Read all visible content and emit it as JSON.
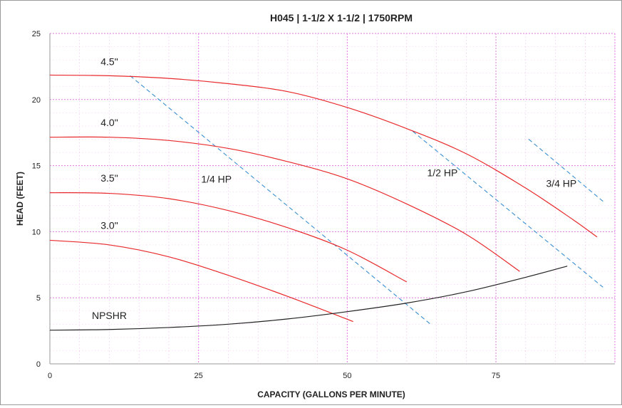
{
  "chart_data": {
    "type": "line",
    "title": "H045 | 1-1/2 X 1-1/2 | 1750RPM",
    "xlabel": "CAPACITY (GALLONS PER MINUTE)",
    "ylabel": "HEAD (FEET)",
    "xlim": [
      0,
      95
    ],
    "ylim": [
      0,
      25
    ],
    "xticks": [
      0,
      25,
      50,
      75
    ],
    "yticks": [
      0,
      5,
      10,
      15,
      20,
      25
    ],
    "grid": true,
    "colors": {
      "impeller": "#e8292b",
      "npshr": "#222222",
      "hp": "#3a8fd0",
      "grid": "#e07ae0",
      "axis": "#9a9a9a"
    },
    "series": [
      {
        "name": "4.5\"",
        "kind": "impeller",
        "x": [
          0,
          10,
          20,
          30,
          40,
          50,
          60,
          70,
          80,
          88,
          92
        ],
        "y": [
          21.85,
          21.8,
          21.6,
          21.2,
          20.6,
          19.4,
          17.8,
          15.9,
          13.3,
          10.9,
          9.6
        ]
      },
      {
        "name": "4.0\"",
        "kind": "impeller",
        "x": [
          0,
          10,
          20,
          30,
          40,
          50,
          60,
          70,
          79
        ],
        "y": [
          17.15,
          17.15,
          16.9,
          16.3,
          15.3,
          14.0,
          12.1,
          9.8,
          7.0
        ]
      },
      {
        "name": "3.5\"",
        "kind": "impeller",
        "x": [
          0,
          10,
          20,
          30,
          40,
          50,
          60
        ],
        "y": [
          12.95,
          12.9,
          12.5,
          11.6,
          10.3,
          8.6,
          6.2
        ]
      },
      {
        "name": "3.0\"",
        "kind": "impeller",
        "x": [
          0,
          10,
          20,
          30,
          40,
          51
        ],
        "y": [
          9.35,
          9.0,
          8.1,
          6.7,
          5.1,
          3.2
        ]
      },
      {
        "name": "NPSHR",
        "kind": "npshr",
        "x": [
          0,
          10,
          20,
          30,
          40,
          50,
          60,
          70,
          80,
          87
        ],
        "y": [
          2.55,
          2.6,
          2.75,
          3.0,
          3.4,
          3.95,
          4.6,
          5.45,
          6.55,
          7.4
        ]
      }
    ],
    "hp_lines": [
      {
        "name": "1/4 HP",
        "x": [
          13.5,
          64
        ],
        "y": [
          21.8,
          3.0
        ]
      },
      {
        "name": "1/2 HP",
        "x": [
          61,
          93
        ],
        "y": [
          17.6,
          5.8
        ]
      },
      {
        "name": "3/4 HP",
        "x": [
          80.5,
          93
        ],
        "y": [
          17.0,
          12.3
        ]
      }
    ],
    "annotations": [
      {
        "text": "4.5\"",
        "x": 10,
        "y": 22.6
      },
      {
        "text": "4.0\"",
        "x": 10,
        "y": 18.0
      },
      {
        "text": "3.5\"",
        "x": 10,
        "y": 13.8
      },
      {
        "text": "3.0\"",
        "x": 10,
        "y": 10.2
      },
      {
        "text": "NPSHR",
        "x": 10,
        "y": 3.4
      },
      {
        "text": "1/4 HP",
        "x": 28,
        "y": 13.7
      },
      {
        "text": "1/2 HP",
        "x": 66,
        "y": 14.2
      },
      {
        "text": "3/4 HP",
        "x": 86,
        "y": 13.4
      }
    ]
  }
}
